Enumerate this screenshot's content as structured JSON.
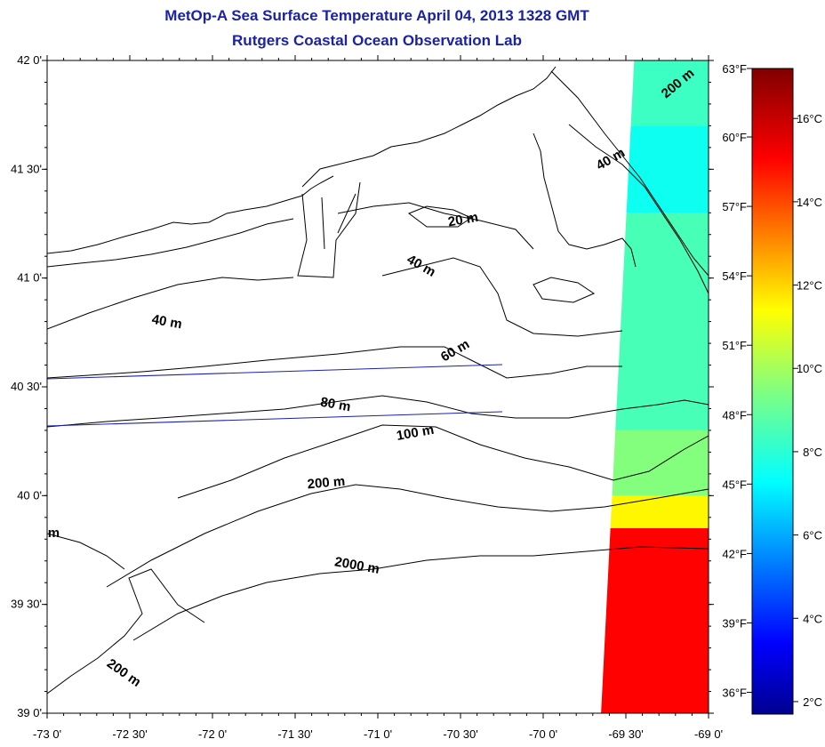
{
  "header": {
    "title": "MetOp-A Sea Surface Temperature April 04, 2013 1328 GMT",
    "subtitle": "Rutgers Coastal Ocean Observation Lab"
  },
  "map": {
    "lat_range": [
      39.0,
      42.0
    ],
    "lon_range": [
      -73.0,
      -69.0
    ],
    "lat_ticks": [
      {
        "value": 39.0,
        "label": "39 0'"
      },
      {
        "value": 39.5,
        "label": "39 30'"
      },
      {
        "value": 40.0,
        "label": "40 0'"
      },
      {
        "value": 40.5,
        "label": "40 30'"
      },
      {
        "value": 41.0,
        "label": "41 0'"
      },
      {
        "value": 41.5,
        "label": "41 30'"
      },
      {
        "value": 42.0,
        "label": "42 0'"
      }
    ],
    "lon_ticks": [
      {
        "value": -73.0,
        "label": "-73 0'"
      },
      {
        "value": -72.5,
        "label": "-72 30'"
      },
      {
        "value": -72.0,
        "label": "-72 0'"
      },
      {
        "value": -71.5,
        "label": "-71 30'"
      },
      {
        "value": -71.0,
        "label": "-71 0'"
      },
      {
        "value": -70.5,
        "label": "-70 30'"
      },
      {
        "value": -70.0,
        "label": "-70 0'"
      },
      {
        "value": -69.5,
        "label": "-69 30'"
      },
      {
        "value": -69.0,
        "label": "-69 0'"
      }
    ],
    "contour_labels": [
      {
        "text": "200 m",
        "lon": -69.17,
        "lat": 41.88,
        "angle": 40
      },
      {
        "text": "40 m",
        "lon": -69.58,
        "lat": 41.53,
        "angle": 30
      },
      {
        "text": "20 m",
        "lon": -70.48,
        "lat": 41.25,
        "angle": 10
      },
      {
        "text": "40 m",
        "lon": -70.75,
        "lat": 41.04,
        "angle": -30
      },
      {
        "text": "40 m",
        "lon": -72.28,
        "lat": 40.78,
        "angle": -10
      },
      {
        "text": "60 m",
        "lon": -70.52,
        "lat": 40.65,
        "angle": 30
      },
      {
        "text": "80 m",
        "lon": -71.26,
        "lat": 40.4,
        "angle": -10
      },
      {
        "text": "100 m",
        "lon": -70.77,
        "lat": 40.27,
        "angle": 10
      },
      {
        "text": "200 m",
        "lon": -71.31,
        "lat": 40.04,
        "angle": 5
      },
      {
        "text": "2000 m",
        "lon": -71.13,
        "lat": 39.66,
        "angle": -10
      },
      {
        "text": "200 m",
        "lon": -72.55,
        "lat": 39.17,
        "angle": -35
      },
      {
        "text": "m",
        "lon": -72.96,
        "lat": 39.81,
        "angle": 0
      }
    ],
    "sst_swath": {
      "lon_west_south": -69.65,
      "lon_west_north": -69.45,
      "lon_east": -69.0,
      "bands": [
        {
          "lat_from": 39.0,
          "lat_to": 39.85,
          "celsius": 15.0
        },
        {
          "lat_from": 39.85,
          "lat_to": 40.0,
          "celsius": 11.5
        },
        {
          "lat_from": 40.0,
          "lat_to": 40.3,
          "celsius": 9.5
        },
        {
          "lat_from": 40.3,
          "lat_to": 41.3,
          "celsius": 8.5
        },
        {
          "lat_from": 41.3,
          "lat_to": 41.7,
          "celsius": 7.5
        },
        {
          "lat_from": 41.7,
          "lat_to": 42.0,
          "celsius": 8.3
        }
      ]
    }
  },
  "colorbar": {
    "min_c": 1.7,
    "max_c": 17.2,
    "fahrenheit_labels": [
      {
        "value": 36,
        "label": "36°F"
      },
      {
        "value": 39,
        "label": "39°F"
      },
      {
        "value": 42,
        "label": "42°F"
      },
      {
        "value": 45,
        "label": "45°F"
      },
      {
        "value": 48,
        "label": "48°F"
      },
      {
        "value": 51,
        "label": "51°F"
      },
      {
        "value": 54,
        "label": "54°F"
      },
      {
        "value": 57,
        "label": "57°F"
      },
      {
        "value": 60,
        "label": "60°F"
      },
      {
        "value": 63,
        "label": "63°F"
      }
    ],
    "celsius_labels": [
      {
        "value": 2,
        "label": "2°C"
      },
      {
        "value": 4,
        "label": "4°C"
      },
      {
        "value": 6,
        "label": "6°C"
      },
      {
        "value": 8,
        "label": "8°C"
      },
      {
        "value": 10,
        "label": "10°C"
      },
      {
        "value": 12,
        "label": "12°C"
      },
      {
        "value": 14,
        "label": "14°C"
      },
      {
        "value": 16,
        "label": "16°C"
      }
    ]
  }
}
